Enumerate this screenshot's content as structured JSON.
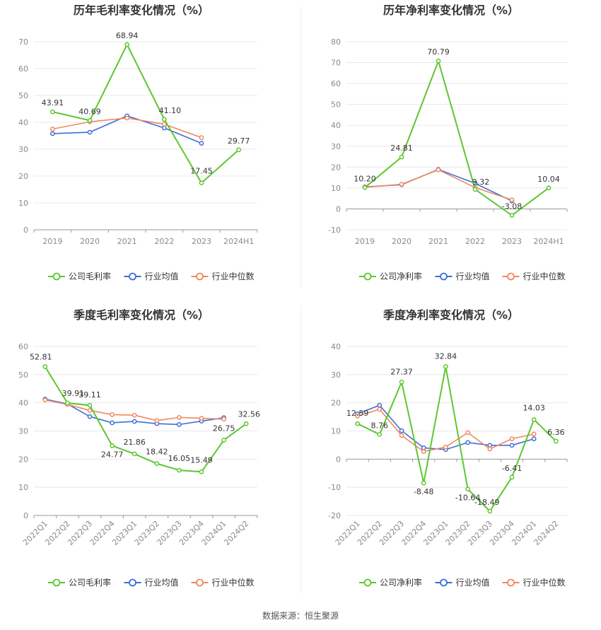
{
  "colors": {
    "company": "#5dc72f",
    "avg": "#3d6fd6",
    "median": "#f08860"
  },
  "source": "数据来源：恒生聚源",
  "chart_data": [
    {
      "type": "line",
      "title": "历年毛利率变化情况（%）",
      "categories": [
        "2019",
        "2020",
        "2021",
        "2022",
        "2023",
        "2024H1"
      ],
      "ylim": [
        0,
        70
      ],
      "yticks": [
        0,
        10,
        20,
        30,
        40,
        50,
        60,
        70
      ],
      "series": [
        {
          "name": "公司毛利率",
          "values": [
            43.91,
            40.69,
            68.94,
            41.1,
            17.45,
            29.77
          ]
        },
        {
          "name": "行业均值",
          "values": [
            35.8,
            36.3,
            42.4,
            37.9,
            32.2,
            null
          ]
        },
        {
          "name": "行业中位数",
          "values": [
            37.5,
            40.2,
            41.6,
            39.3,
            34.3,
            null
          ]
        }
      ],
      "data_labels": [
        "43.91",
        "40.69",
        "68.94",
        "41.10",
        "17.45",
        "29.77"
      ]
    },
    {
      "type": "line",
      "title": "历年净利率变化情况（%）",
      "categories": [
        "2019",
        "2020",
        "2021",
        "2022",
        "2023",
        "2024H1"
      ],
      "ylim": [
        -10,
        80
      ],
      "yticks": [
        -10,
        0,
        10,
        20,
        30,
        40,
        50,
        60,
        70,
        80
      ],
      "series": [
        {
          "name": "公司净利率",
          "values": [
            10.2,
            24.81,
            70.79,
            9.32,
            -3.08,
            10.04
          ]
        },
        {
          "name": "行业均值",
          "values": [
            10.5,
            11.6,
            18.9,
            12.2,
            3.8,
            null
          ]
        },
        {
          "name": "行业中位数",
          "values": [
            10.3,
            11.8,
            18.7,
            10.2,
            4.3,
            null
          ]
        }
      ],
      "data_labels": [
        "10.20",
        "24.81",
        "70.79",
        "9.32",
        "-3.08",
        "10.04"
      ]
    },
    {
      "type": "line",
      "title": "季度毛利率变化情况（%）",
      "categories": [
        "2022Q1",
        "2022Q2",
        "2022Q3",
        "2022Q4",
        "2023Q1",
        "2023Q2",
        "2023Q3",
        "2023Q4",
        "2024Q1",
        "2024Q2"
      ],
      "ylim": [
        0,
        60
      ],
      "yticks": [
        0,
        10,
        20,
        30,
        40,
        50,
        60
      ],
      "series": [
        {
          "name": "公司毛利率",
          "values": [
            52.81,
            39.91,
            39.11,
            24.77,
            21.86,
            18.42,
            16.05,
            15.49,
            26.75,
            32.56
          ]
        },
        {
          "name": "行业均值",
          "values": [
            41.3,
            39.6,
            35.1,
            32.9,
            33.4,
            32.6,
            32.3,
            33.5,
            34.7,
            null
          ]
        },
        {
          "name": "行业中位数",
          "values": [
            41.0,
            39.4,
            37.3,
            35.8,
            35.6,
            33.7,
            34.8,
            34.5,
            34.2,
            null
          ]
        }
      ],
      "data_labels": [
        "52.81",
        "39.91",
        "39.11",
        "24.77",
        "21.86",
        "18.42",
        "16.05",
        "15.49",
        "26.75",
        "32.56"
      ]
    },
    {
      "type": "line",
      "title": "季度净利率变化情况（%）",
      "categories": [
        "2022Q1",
        "2022Q2",
        "2022Q3",
        "2022Q4",
        "2023Q1",
        "2023Q2",
        "2023Q3",
        "2023Q4",
        "2024Q1",
        "2024Q2"
      ],
      "ylim": [
        -20,
        40
      ],
      "yticks": [
        -20,
        -10,
        0,
        10,
        20,
        30,
        40
      ],
      "series": [
        {
          "name": "公司净利率",
          "values": [
            12.59,
            8.76,
            27.37,
            -8.48,
            32.84,
            -10.64,
            -18.49,
            -6.41,
            14.03,
            6.36
          ]
        },
        {
          "name": "行业均值",
          "values": [
            16.1,
            19.1,
            10.1,
            4.0,
            3.4,
            5.9,
            4.9,
            4.9,
            7.2,
            null
          ]
        },
        {
          "name": "行业中位数",
          "values": [
            15.3,
            17.7,
            8.4,
            2.7,
            4.3,
            9.4,
            3.6,
            7.2,
            8.9,
            null
          ]
        }
      ],
      "data_labels": [
        "12.59",
        "8.76",
        "27.37",
        "-8.48",
        "32.84",
        "-10.64",
        "-18.49",
        "-6.41",
        "14.03",
        "6.36"
      ]
    }
  ]
}
